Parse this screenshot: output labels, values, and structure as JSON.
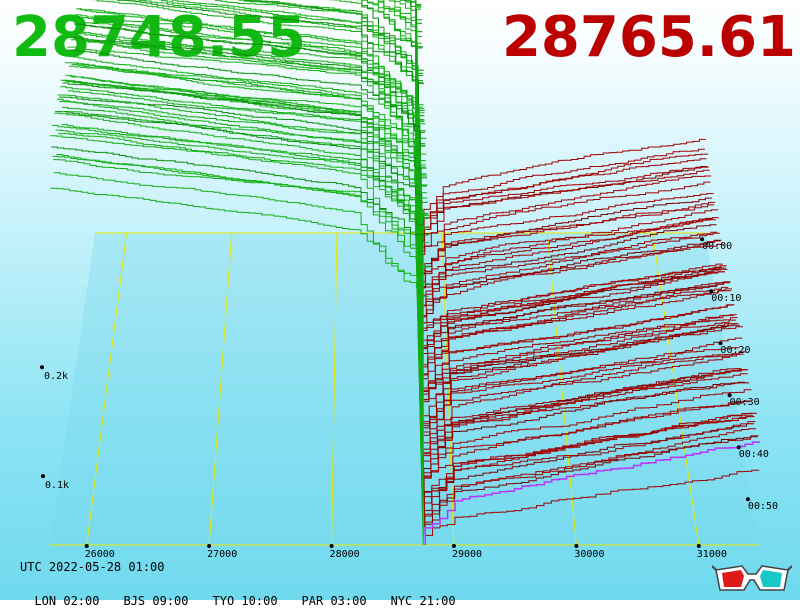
{
  "header": {
    "bid_price": "28748.55",
    "ask_price": "28765.61",
    "bid_color": "#11bb11",
    "ask_color": "#bb0000"
  },
  "footer": {
    "utc": "UTC 2022-05-28 01:00",
    "timezones": [
      {
        "label": "LON 02:00"
      },
      {
        "label": "BJS 09:00"
      },
      {
        "label": "TYO 10:00"
      },
      {
        "label": "PAR 03:00"
      },
      {
        "label": "NYC 21:00"
      }
    ],
    "icon": "3d-glasses-icon"
  },
  "chart_data": {
    "type": "area",
    "subtype": "3d-order-book-depth-history",
    "x_ticks": [
      "26000",
      "27000",
      "28000",
      "29000",
      "30000",
      "31000"
    ],
    "x_tick_values": [
      26000,
      27000,
      28000,
      29000,
      30000,
      31000
    ],
    "x_range": [
      25700,
      31500
    ],
    "time_ticks": [
      "00:00",
      "00:10",
      "00:20",
      "00:30",
      "00:40",
      "00:50"
    ],
    "depth_ticks": [
      "0.1k",
      "0.2k"
    ],
    "depth_tick_values": [
      100,
      200
    ],
    "best_bid": 28748.55,
    "best_ask": 28765.61,
    "series": [
      {
        "name": "bids",
        "color": "#11aa11"
      },
      {
        "name": "asks",
        "color": "#990000"
      }
    ],
    "grid_color": "#e6e600",
    "current_ask_color": "#bb33ff",
    "snapshots": 72
  }
}
